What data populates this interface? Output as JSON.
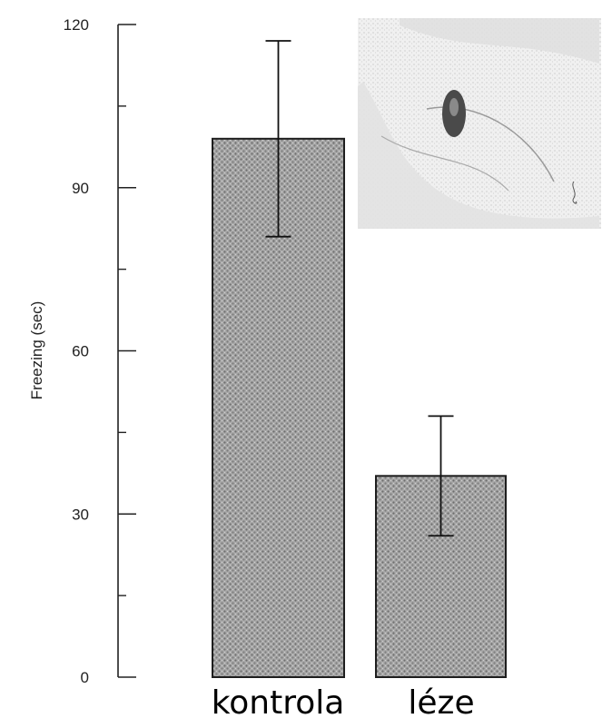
{
  "chart_data": {
    "type": "bar",
    "categories": [
      "kontrola",
      "léze"
    ],
    "values": [
      99,
      37
    ],
    "errors": [
      {
        "low": 81,
        "high": 117
      },
      {
        "low": 26,
        "high": 48
      }
    ],
    "ylabel": "Freezing (sec)",
    "yticks": [
      "0",
      "30",
      "60",
      "90",
      "120"
    ],
    "ylim": [
      0,
      120
    ],
    "grid": false,
    "inset": "brain-section-image"
  }
}
